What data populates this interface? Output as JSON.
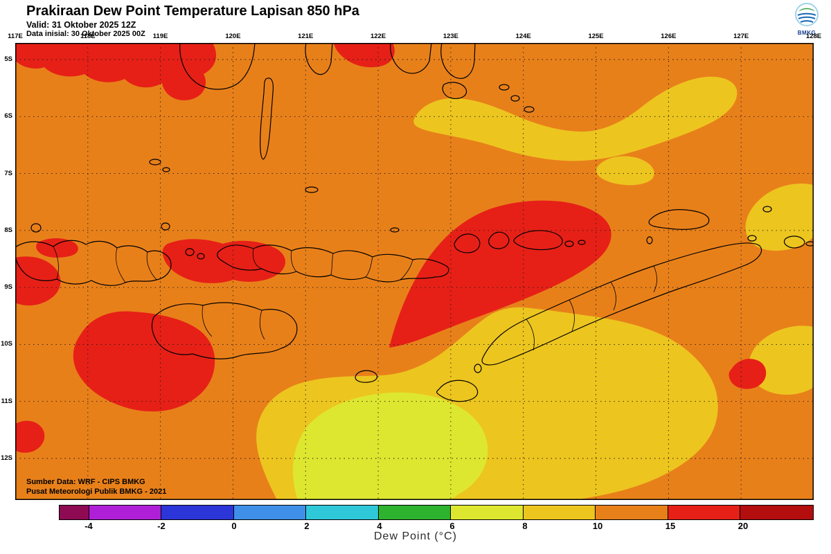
{
  "header": {
    "title": "Prakiraan Dew Point Temperature Lapisan 850 hPa",
    "valid": "Valid: 31 Oktober 2025 12Z",
    "init": "Data inisial: 30 Oktober 2025 00Z",
    "logo": "BMKG"
  },
  "axes": {
    "lon": [
      "117E",
      "118E",
      "119E",
      "120E",
      "121E",
      "122E",
      "123E",
      "124E",
      "125E",
      "126E",
      "127E",
      "128E"
    ],
    "lat": [
      "5S",
      "6S",
      "7S",
      "8S",
      "9S",
      "10S",
      "11S",
      "12S"
    ]
  },
  "map": {
    "source1": "Sumber Data: WRF - CIPS BMKG",
    "source2": "Pusat Meteorologi Publik BMKG -  2021"
  },
  "colors": {
    "map_orange": "#E8801A",
    "map_gold": "#EDC51F",
    "map_yellow": "#DEE72F",
    "map_red": "#E62017",
    "coastline": "#000000",
    "grid": "#1A1A1A"
  },
  "colorbar": {
    "cells": [
      "#8E0A52",
      "#B01FD8",
      "#2B35D8",
      "#3F8FE8",
      "#2EC8D8",
      "#2DB32D",
      "#DEE72F",
      "#EDC51F",
      "#E8801A",
      "#E62017",
      "#B30D0D"
    ],
    "ticks": [
      "-4",
      "-2",
      "0",
      "2",
      "4",
      "6",
      "8",
      "10",
      "15",
      "20"
    ],
    "caption": "Dew Point (°C)"
  }
}
